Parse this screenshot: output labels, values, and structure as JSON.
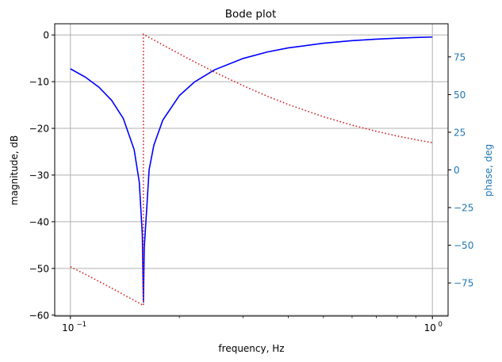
{
  "chart_data": {
    "type": "line",
    "title": "Bode plot",
    "xlabel": "frequency, Hz",
    "ylabel": "magnitude, dB",
    "ylabel_right": "phase, deg",
    "xscale": "log",
    "xlim": [
      0.0905,
      1.105
    ],
    "ylim": [
      -60.2,
      2.4
    ],
    "ylim_right": [
      -97,
      97
    ],
    "grid": true,
    "x_ticks": [
      {
        "value": 0.1,
        "base": "10",
        "exp": "−1"
      },
      {
        "value": 1.0,
        "base": "10",
        "exp": "0"
      }
    ],
    "x_minor_ticks": [
      0.09,
      0.2,
      0.3,
      0.4,
      0.5,
      0.6,
      0.7,
      0.8,
      0.9
    ],
    "y_ticks": [
      {
        "value": 0,
        "label": "0"
      },
      {
        "value": -10,
        "label": "−10"
      },
      {
        "value": -20,
        "label": "−20"
      },
      {
        "value": -30,
        "label": "−30"
      },
      {
        "value": -40,
        "label": "−40"
      },
      {
        "value": -50,
        "label": "−50"
      },
      {
        "value": -60,
        "label": "−60"
      }
    ],
    "y_right_ticks": [
      {
        "value": 75,
        "label": "75"
      },
      {
        "value": 50,
        "label": "50"
      },
      {
        "value": 25,
        "label": "25"
      },
      {
        "value": 0,
        "label": "0"
      },
      {
        "value": -25,
        "label": "−25"
      },
      {
        "value": -50,
        "label": "−50"
      },
      {
        "value": -75,
        "label": "−75"
      }
    ],
    "colors": {
      "magnitude": "#0000ff",
      "phase": "#d62728",
      "right_axis": "#1f77b4",
      "grid": "#b0b0b0",
      "text": "#000000"
    },
    "series": [
      {
        "name": "magnitude",
        "axis": "left",
        "style": "solid",
        "x": [
          0.1,
          0.11,
          0.12,
          0.13,
          0.14,
          0.15,
          0.155,
          0.158,
          0.1591,
          0.16,
          0.165,
          0.17,
          0.18,
          0.2,
          0.22,
          0.25,
          0.3,
          0.35,
          0.4,
          0.5,
          0.6,
          0.7,
          0.8,
          0.9,
          1.0
        ],
        "values": [
          -7.25,
          -9.03,
          -11.21,
          -14.0,
          -17.89,
          -24.56,
          -31.56,
          -42.75,
          -57.3,
          -45.52,
          -28.86,
          -23.63,
          -18.24,
          -12.97,
          -10.09,
          -7.47,
          -5.03,
          -3.64,
          -2.77,
          -1.77,
          -1.22,
          -0.9,
          -0.69,
          -0.54,
          -0.44
        ]
      },
      {
        "name": "phase",
        "axis": "right",
        "style": "dotted",
        "x": [
          0.1,
          0.11,
          0.12,
          0.13,
          0.14,
          0.15,
          0.155,
          0.158,
          0.1591,
          0.1591,
          0.16,
          0.165,
          0.17,
          0.18,
          0.2,
          0.22,
          0.25,
          0.3,
          0.35,
          0.4,
          0.5,
          0.6,
          0.7,
          0.8,
          0.9,
          1.0
        ],
        "values": [
          -64.28,
          -69.31,
          -74.05,
          -78.48,
          -82.68,
          -86.6,
          -88.48,
          -89.58,
          -89.98,
          90.0,
          89.7,
          87.94,
          86.24,
          82.96,
          77.02,
          71.78,
          64.96,
          55.9,
          48.9,
          43.4,
          35.31,
          29.71,
          25.62,
          22.5,
          20.06,
          18.09
        ]
      }
    ]
  }
}
